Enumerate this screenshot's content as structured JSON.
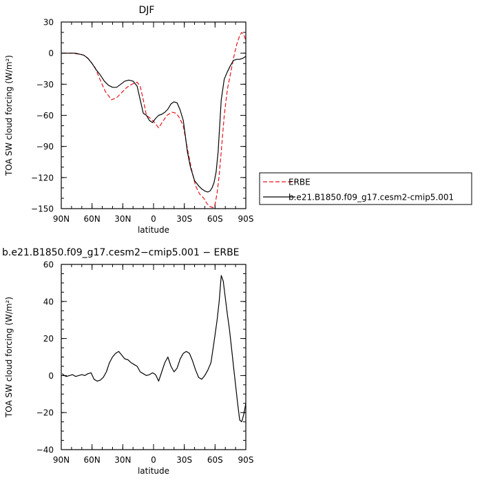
{
  "chart_data": [
    {
      "type": "line",
      "title": "DJF",
      "xlabel": "latitude",
      "ylabel": "TOA SW cloud forcing (W/m²)",
      "xlim": [
        90,
        -90
      ],
      "ylim": [
        -150,
        30
      ],
      "xticks": [
        90,
        60,
        30,
        0,
        -30,
        -60,
        -90
      ],
      "xtick_labels": [
        "90N",
        "60N",
        "30N",
        "0",
        "30S",
        "60S",
        "90S"
      ],
      "yticks": [
        30,
        0,
        -30,
        -60,
        -90,
        -120,
        -150
      ],
      "ytick_labels": [
        "30",
        "0",
        "−30",
        "−60",
        "−90",
        "−120",
        "−150"
      ],
      "legend": "right",
      "series": [
        {
          "name": "ERBE",
          "color": "#e8121b",
          "dash": "dashed",
          "x": [
            89,
            80,
            72,
            68,
            63,
            57,
            52,
            47,
            41,
            36,
            31,
            26,
            21,
            16,
            13,
            10,
            7,
            3,
            -1,
            -5,
            -9,
            -13,
            -18,
            -22,
            -25,
            -29,
            -33,
            -37,
            -41,
            -45,
            -49,
            -52,
            -55,
            -58,
            -60,
            -62,
            -64,
            -66,
            -69,
            -72,
            -75,
            -78,
            -81,
            -84,
            -86,
            -88,
            -90
          ],
          "y": [
            0,
            0,
            -1,
            -2,
            -6,
            -14,
            -26,
            -37,
            -45,
            -43,
            -38,
            -33,
            -30,
            -28,
            -32,
            -45,
            -60,
            -63,
            -67,
            -72,
            -66,
            -60,
            -57,
            -58,
            -62,
            -70,
            -92,
            -112,
            -128,
            -136,
            -140,
            -145,
            -148,
            -149,
            -146,
            -135,
            -118,
            -95,
            -60,
            -35,
            -20,
            -5,
            8,
            17,
            20,
            18,
            12
          ]
        },
        {
          "name": "b.e21.B1850.f09_g17.cesm2-cmip5.001",
          "color": "#000000",
          "dash": "solid",
          "x": [
            89,
            84,
            80,
            76,
            72,
            68,
            64,
            60,
            56,
            52,
            48,
            44,
            40,
            36,
            32,
            28,
            24,
            20,
            16,
            13,
            10,
            7,
            4,
            1,
            -2,
            -5,
            -8,
            -11,
            -14,
            -17,
            -20,
            -23,
            -26,
            -29,
            -31,
            -33,
            -36,
            -40,
            -44,
            -47,
            -50,
            -53,
            -55,
            -57,
            -59,
            -61,
            -63,
            -66,
            -69,
            -72,
            -75,
            -78,
            -81,
            -84,
            -87,
            -90
          ],
          "y": [
            0,
            0,
            0,
            0,
            -1,
            -2,
            -5,
            -10,
            -16,
            -21,
            -27,
            -31,
            -33,
            -33,
            -30,
            -27,
            -26,
            -27,
            -32,
            -45,
            -58,
            -60,
            -65,
            -67,
            -63,
            -60,
            -59,
            -57,
            -54,
            -49,
            -47,
            -48,
            -55,
            -65,
            -80,
            -95,
            -110,
            -123,
            -128,
            -131,
            -133,
            -134,
            -133,
            -130,
            -125,
            -115,
            -95,
            -45,
            -25,
            -18,
            -12,
            -7,
            -6,
            -6,
            -5,
            -3
          ]
        }
      ]
    },
    {
      "type": "line",
      "title": "b.e21.B1850.f09_g17.cesm2−cmip5.001 − ERBE",
      "xlabel": "latitude",
      "ylabel": "TOA SW cloud forcing (W/m²)",
      "xlim": [
        90,
        -90
      ],
      "ylim": [
        -40,
        60
      ],
      "xticks": [
        90,
        60,
        30,
        0,
        -30,
        -60,
        -90
      ],
      "xtick_labels": [
        "90N",
        "60N",
        "30N",
        "0",
        "30S",
        "60S",
        "90S"
      ],
      "yticks": [
        60,
        40,
        20,
        0,
        -20,
        -40
      ],
      "ytick_labels": [
        "60",
        "40",
        "20",
        "0",
        "−20",
        "−40"
      ],
      "series": [
        {
          "color": "#000000",
          "x": [
            89,
            87,
            85,
            82,
            79,
            76,
            73,
            70,
            67,
            64,
            61,
            58,
            55,
            52,
            49,
            46,
            43,
            40,
            37,
            34,
            31,
            28,
            25,
            22,
            19,
            16,
            13,
            10,
            7,
            4,
            1,
            -2,
            -5,
            -8,
            -11,
            -14,
            -17,
            -20,
            -23,
            -26,
            -29,
            -32,
            -35,
            -38,
            -41,
            -44,
            -47,
            -50,
            -53,
            -56,
            -59,
            -62,
            -64,
            -66,
            -68,
            -70,
            -72,
            -74,
            -76,
            -78,
            -80,
            -82,
            -84,
            -86,
            -88,
            -90
          ],
          "y": [
            1,
            0,
            -0.5,
            0,
            0.5,
            -0.5,
            0,
            0.5,
            0,
            1,
            1.5,
            -2,
            -3,
            -2.5,
            -1,
            2,
            7,
            10,
            12,
            13,
            11,
            9,
            8.5,
            7,
            6,
            5,
            2,
            1,
            0,
            0.5,
            1.5,
            0.5,
            -3,
            2,
            7,
            10,
            5,
            2,
            4,
            9,
            12,
            13,
            12,
            8,
            3,
            -1,
            -2,
            0,
            3,
            7,
            18,
            30,
            40,
            54,
            51,
            42,
            33,
            25,
            15,
            5,
            -5,
            -15,
            -24,
            -25,
            -21,
            -15
          ]
        }
      ]
    }
  ]
}
